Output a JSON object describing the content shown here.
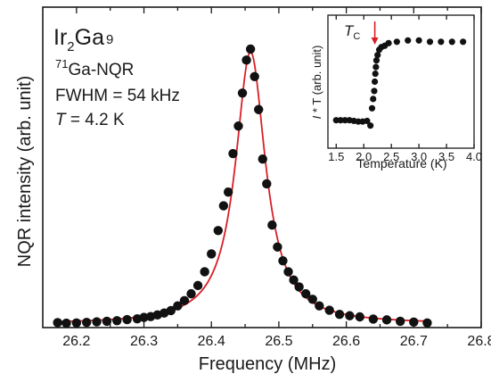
{
  "colors": {
    "fit": "#d81f26",
    "points": "#111111",
    "arrow": "#d81f26"
  },
  "chart_data": [
    {
      "type": "scatter",
      "xlabel": "Frequency (MHz)",
      "ylabel": "NQR intensity (arb. unit)",
      "xlim": [
        26.15,
        26.8
      ],
      "ylim": [
        0,
        1.0
      ],
      "xticks": [
        "26.2",
        "26.3",
        "26.4",
        "26.5",
        "26.6",
        "26.7",
        "26.8"
      ],
      "grid": false,
      "annotations": {
        "compound_base1": "Ir",
        "compound_sub1": "2",
        "compound_base2": "Ga",
        "compound_sub2": "9",
        "nucleus_sup": "71",
        "nucleus": "Ga-NQR",
        "fwhm": "FWHM = 54 kHz",
        "temp_symbol": "T",
        "temp_value": " = 4.2 K"
      },
      "series": [
        {
          "kind": "points",
          "x": [
            26.172,
            26.185,
            26.2,
            26.215,
            26.23,
            26.245,
            26.26,
            26.275,
            26.29,
            26.3,
            26.31,
            26.32,
            26.33,
            26.34,
            26.35,
            26.36,
            26.37,
            26.38,
            26.39,
            26.4,
            26.41,
            26.418,
            26.425,
            26.432,
            26.44,
            26.446,
            26.452,
            26.458,
            26.464,
            26.47,
            26.476,
            26.482,
            26.49,
            26.498,
            26.506,
            26.514,
            26.522,
            26.53,
            26.54,
            26.55,
            26.56,
            26.575,
            26.59,
            26.605,
            26.62,
            26.64,
            26.66,
            26.68,
            26.7,
            26.72
          ],
          "y": [
            0.005,
            0.003,
            0.004,
            0.006,
            0.008,
            0.01,
            0.012,
            0.016,
            0.019,
            0.024,
            0.027,
            0.033,
            0.04,
            0.049,
            0.066,
            0.085,
            0.11,
            0.14,
            0.19,
            0.255,
            0.34,
            0.43,
            0.48,
            0.62,
            0.72,
            0.84,
            0.96,
            1.0,
            0.9,
            0.78,
            0.6,
            0.51,
            0.36,
            0.28,
            0.23,
            0.19,
            0.16,
            0.135,
            0.11,
            0.09,
            0.066,
            0.05,
            0.035,
            0.03,
            0.026,
            0.018,
            0.015,
            0.01,
            0.007,
            0.004
          ]
        },
        {
          "kind": "lorentzian_fit",
          "center": 26.458,
          "fwhm_mhz": 0.054,
          "amplitude": 0.99
        }
      ]
    },
    {
      "type": "scatter",
      "inset": true,
      "xlabel": "Temperature (K)",
      "ylabel_i": "I",
      "ylabel_rest": " * T (arb. unit)",
      "tc_label": "T",
      "tc_sub": "C",
      "tc_value": 2.2,
      "xlim": [
        1.35,
        4.0
      ],
      "ylim": [
        0,
        1.0
      ],
      "xticks": [
        "1.5",
        "2.0",
        "2.5",
        "3.0",
        "3.5",
        "4.0"
      ],
      "series": [
        {
          "kind": "points",
          "x": [
            1.5,
            1.58,
            1.66,
            1.74,
            1.82,
            1.9,
            1.98,
            2.06,
            2.12,
            2.15,
            2.17,
            2.19,
            2.2,
            2.21,
            2.22,
            2.23,
            2.25,
            2.28,
            2.32,
            2.38,
            2.45,
            2.6,
            2.8,
            3.0,
            3.2,
            3.4,
            3.6,
            3.8
          ],
          "y": [
            0.21,
            0.21,
            0.21,
            0.21,
            0.205,
            0.2,
            0.2,
            0.205,
            0.17,
            0.3,
            0.37,
            0.43,
            0.5,
            0.56,
            0.61,
            0.66,
            0.7,
            0.74,
            0.76,
            0.77,
            0.79,
            0.8,
            0.81,
            0.81,
            0.8,
            0.8,
            0.8,
            0.8
          ]
        }
      ]
    }
  ]
}
